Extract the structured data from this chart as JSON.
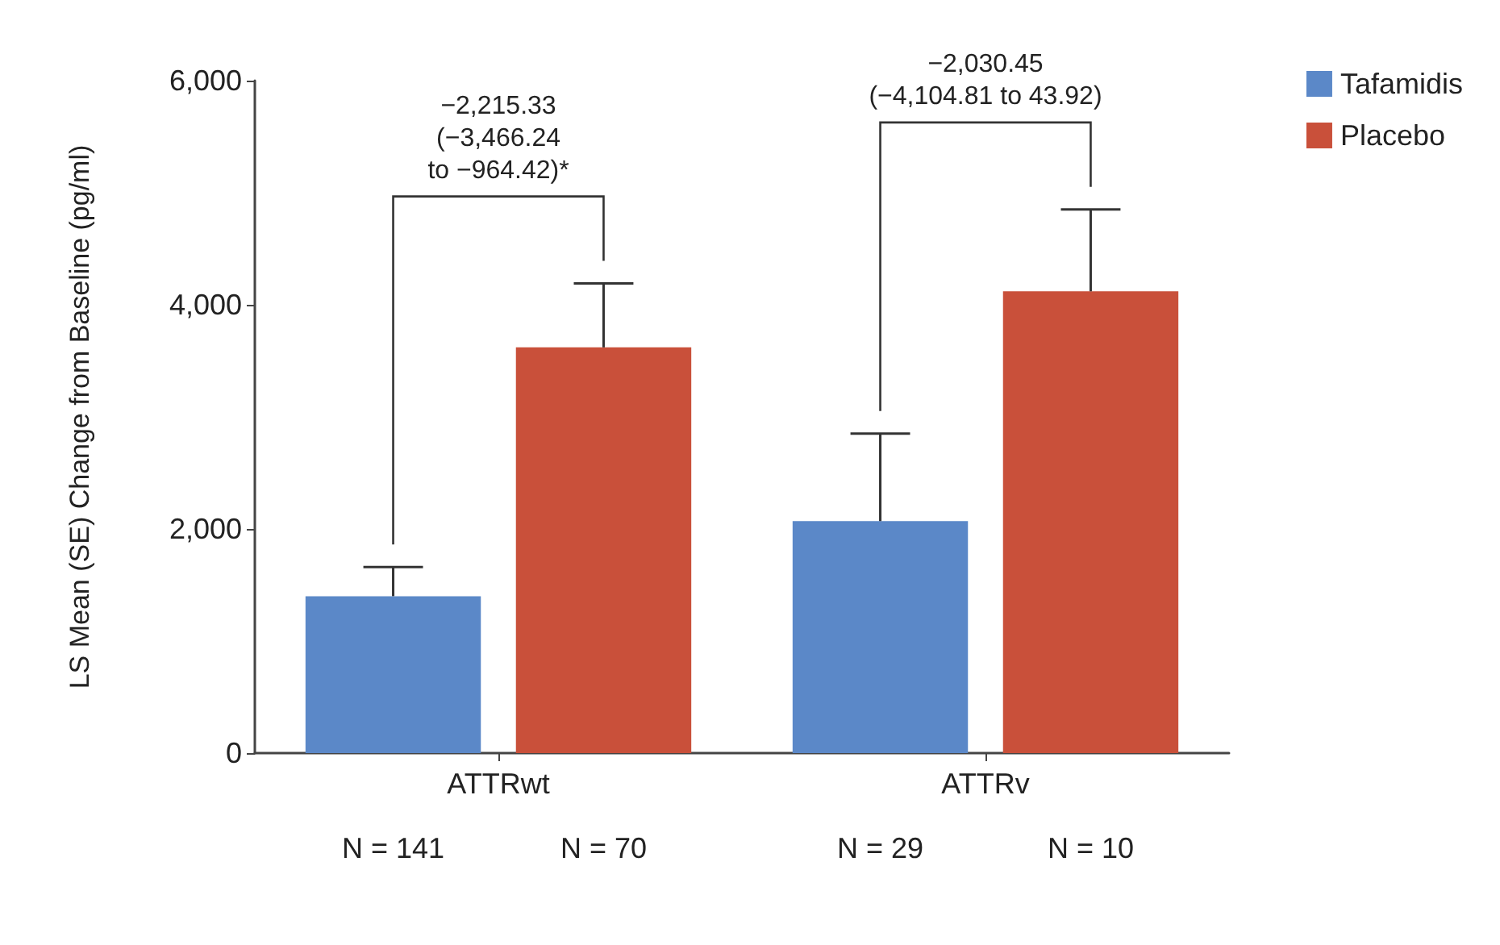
{
  "chart_data": {
    "type": "bar",
    "ylabel": "LS Mean (SE) Change from Baseline (pg/ml)",
    "categories": [
      "ATTRwt",
      "ATTRv"
    ],
    "series": [
      {
        "name": "Tafamidis",
        "color": "#5b88c8",
        "values": [
          1400,
          2070
        ],
        "errors": [
          [
            1400,
            1660
          ],
          [
            2070,
            2850
          ]
        ]
      },
      {
        "name": "Placebo",
        "color": "#c9503a",
        "values": [
          3620,
          4120
        ],
        "errors": [
          [
            3620,
            4190
          ],
          [
            4120,
            4850
          ]
        ]
      }
    ],
    "ylim": [
      0,
      6000
    ],
    "yticks": [
      0,
      {
        "value": 2000,
        "label": "2,000"
      },
      {
        "value": 4000,
        "label": "4,000"
      },
      {
        "value": 6000,
        "label": "6,000"
      }
    ],
    "grid": false,
    "legend": "top right",
    "annotations": [
      "−2,215.33\n(−3,466.24\nto −964.42)*",
      "−2,030.45\n(−4,104.81 to 43.92)",
      "N = 141",
      "N = 70",
      "N = 29",
      "N = 10"
    ]
  }
}
